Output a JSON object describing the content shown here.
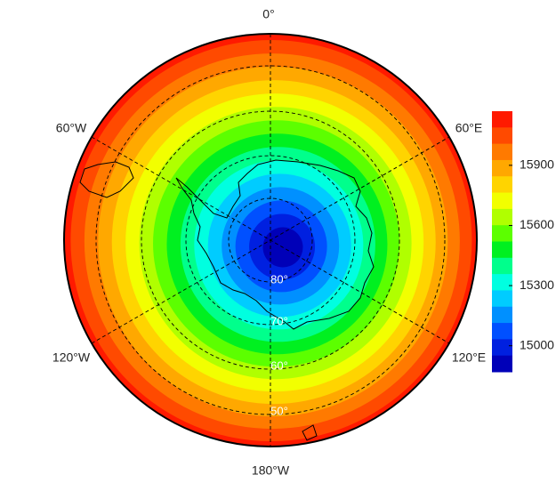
{
  "chart_data": {
    "type": "polar-map",
    "longitude_labels": [
      "0°",
      "60°E",
      "120°E",
      "180°W",
      "120°W",
      "60°W"
    ],
    "latitude_labels": [
      "80°",
      "70°",
      "60°",
      "50°"
    ],
    "colorbar": {
      "lim": [
        14870,
        16170
      ],
      "ticks": [
        15000,
        15300,
        15600,
        15900
      ]
    }
  }
}
